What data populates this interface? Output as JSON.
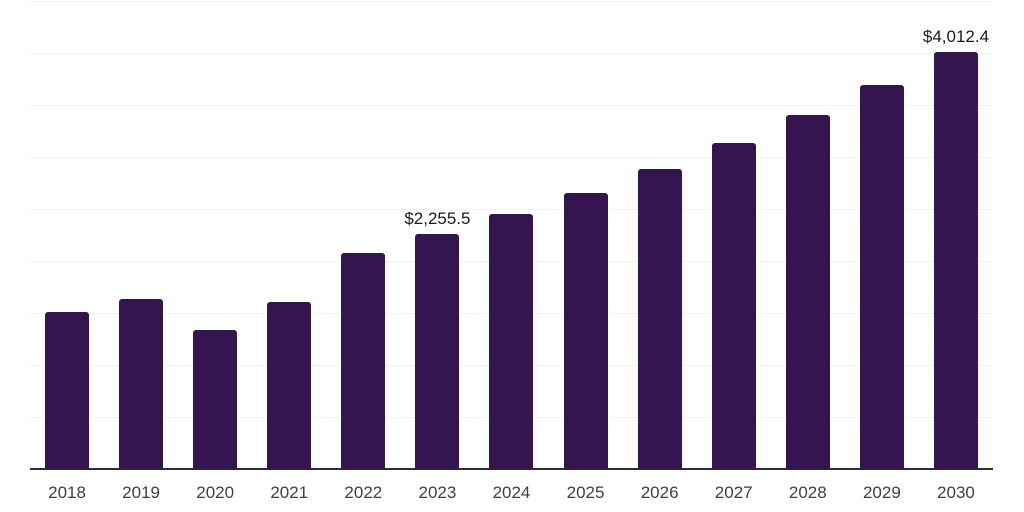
{
  "chart_data": {
    "type": "bar",
    "title": "",
    "xlabel": "",
    "ylabel": "",
    "categories": [
      "2018",
      "2019",
      "2020",
      "2021",
      "2022",
      "2023",
      "2024",
      "2025",
      "2026",
      "2027",
      "2028",
      "2029",
      "2030"
    ],
    "values": [
      1510,
      1633,
      1341,
      1606,
      2074,
      2255.5,
      2449,
      2659,
      2887,
      3135,
      3404,
      3696,
      4012.4
    ],
    "data_labels": [
      {
        "category": "2023",
        "text": "$2,255.5"
      },
      {
        "category": "2030",
        "text": "$4,012.4"
      }
    ],
    "ylim": [
      0,
      4500
    ],
    "grid_interval": 500,
    "grid": true,
    "legend": false,
    "y_axis_labels_visible": false,
    "colors": {
      "bar": "#35154f",
      "grid": "#f2f2f2",
      "axis_line": "#2d2d33",
      "tick_label": "#404040",
      "data_label": "#1b1b1b",
      "background": "#ffffff"
    }
  }
}
